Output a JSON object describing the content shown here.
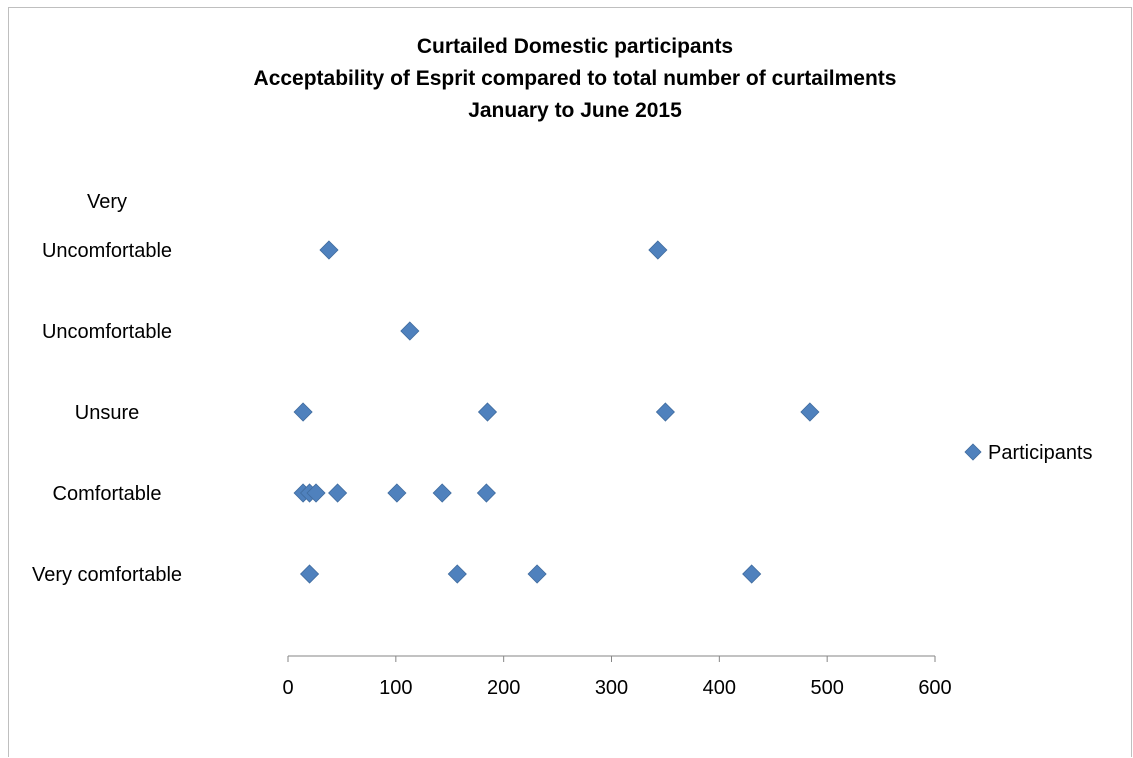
{
  "chart_data": {
    "type": "scatter",
    "title": [
      "Curtailed Domestic participants",
      "Acceptability of Esprit compared to total number of curtailments",
      "January to June 2015"
    ],
    "xlabel": "",
    "ylabel": "",
    "xlim": [
      0,
      600
    ],
    "x_ticks": [
      0,
      100,
      200,
      300,
      400,
      500,
      600
    ],
    "x_tick_labels": [
      "0",
      "100",
      "200",
      "300",
      "400",
      "500",
      "600"
    ],
    "y_categories": [
      "Very comfortable",
      "Comfortable",
      "Unsure",
      "Uncomfortable",
      "Very Uncomfortable"
    ],
    "y_category_label_lines": [
      [
        "Very comfortable"
      ],
      [
        "Comfortable"
      ],
      [
        "Unsure"
      ],
      [
        "Uncomfortable"
      ],
      [
        "Very",
        "Uncomfortable"
      ]
    ],
    "y_values": [
      1,
      2,
      3,
      4,
      5
    ],
    "grid": false,
    "legend_position": "right",
    "series": [
      {
        "name": "Participants",
        "color": "#4f81bd",
        "marker": "diamond",
        "points": [
          {
            "x": 38,
            "y": 5
          },
          {
            "x": 343,
            "y": 5
          },
          {
            "x": 113,
            "y": 4
          },
          {
            "x": 14,
            "y": 3
          },
          {
            "x": 185,
            "y": 3
          },
          {
            "x": 350,
            "y": 3
          },
          {
            "x": 484,
            "y": 3
          },
          {
            "x": 14,
            "y": 2
          },
          {
            "x": 20,
            "y": 2
          },
          {
            "x": 26,
            "y": 2
          },
          {
            "x": 46,
            "y": 2
          },
          {
            "x": 101,
            "y": 2
          },
          {
            "x": 143,
            "y": 2
          },
          {
            "x": 184,
            "y": 2
          },
          {
            "x": 20,
            "y": 1
          },
          {
            "x": 157,
            "y": 1
          },
          {
            "x": 231,
            "y": 1
          },
          {
            "x": 430,
            "y": 1
          }
        ]
      }
    ]
  }
}
